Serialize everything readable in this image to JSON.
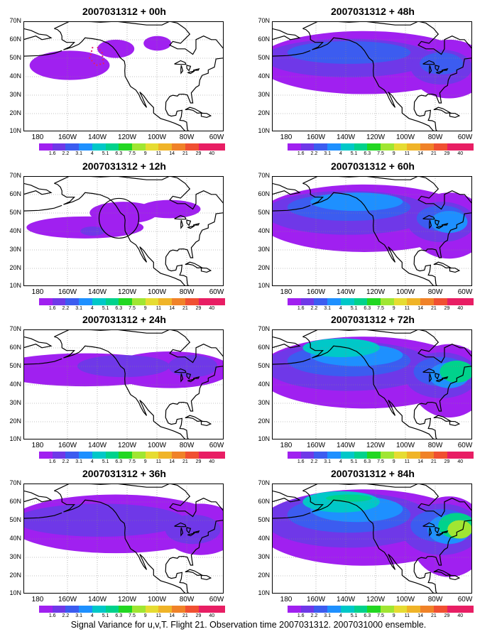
{
  "footer": "Signal Variance for u,v,T. Flight 21. Observation time 2007031312. 2007031000 ensemble.",
  "y_labels": [
    "70N",
    "60N",
    "50N",
    "40N",
    "30N",
    "20N",
    "10N"
  ],
  "x_labels": [
    "180",
    "160W",
    "140W",
    "120W",
    "100W",
    "80W",
    "60W"
  ],
  "colorbar": {
    "colors": [
      "#a020f0",
      "#6f38e8",
      "#3c5cf0",
      "#1e90ff",
      "#00c8c8",
      "#00d28c",
      "#22d722",
      "#a0e632",
      "#e6dc32",
      "#f0b428",
      "#f08228",
      "#f05032",
      "#e81e64"
    ],
    "labels": [
      "1.6",
      "2.2",
      "3.1",
      "4",
      "5.1",
      "6.3",
      "7.5",
      "9",
      "11",
      "14",
      "21",
      "29",
      "40"
    ]
  },
  "panels": [
    {
      "title": "2007031312 + 00h",
      "level": 0
    },
    {
      "title": "2007031312 + 48h",
      "level": 4
    },
    {
      "title": "2007031312 + 12h",
      "level": 1
    },
    {
      "title": "2007031312 + 60h",
      "level": 5
    },
    {
      "title": "2007031312 + 24h",
      "level": 2
    },
    {
      "title": "2007031312 + 72h",
      "level": 6
    },
    {
      "title": "2007031312 + 36h",
      "level": 3
    },
    {
      "title": "2007031312 + 84h",
      "level": 7
    }
  ]
}
